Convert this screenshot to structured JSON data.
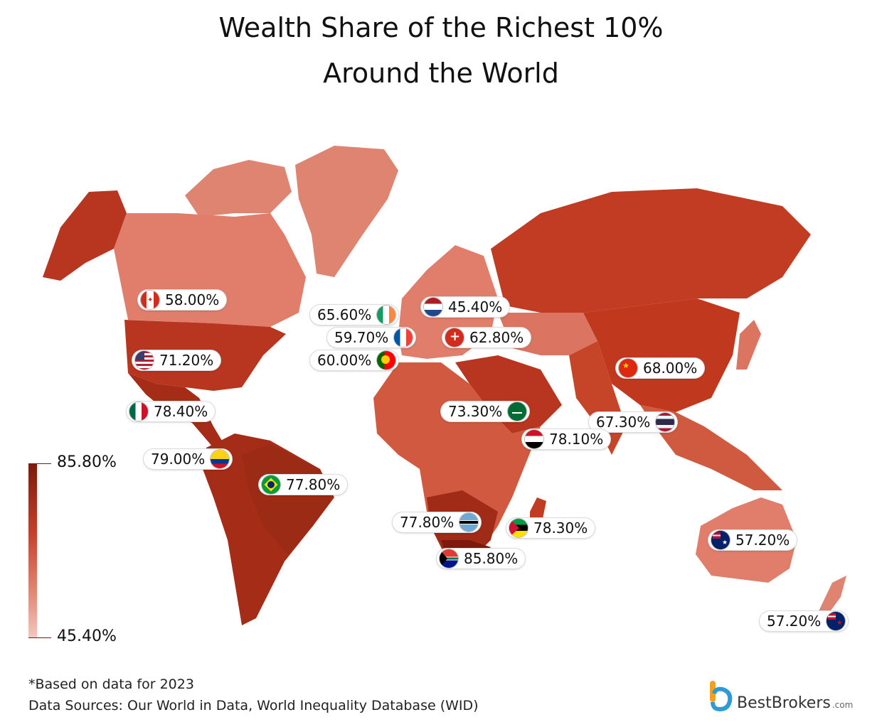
{
  "title_line1": "Wealth Share of the Richest 10%",
  "title_line2": "Around the World",
  "legend": {
    "max": "85.80%",
    "min": "45.40%",
    "color_max": "#7e1a0d",
    "color_min": "#f2c8bf"
  },
  "countries": [
    {
      "country": "Canada",
      "value": "58.00%",
      "flag_icon": "canada-flag-icon"
    },
    {
      "country": "Ireland",
      "value": "65.60%",
      "flag_icon": "ireland-flag-icon"
    },
    {
      "country": "Netherlands",
      "value": "45.40%",
      "flag_icon": "netherlands-flag-icon"
    },
    {
      "country": "France",
      "value": "59.70%",
      "flag_icon": "france-flag-icon"
    },
    {
      "country": "Switzerland",
      "value": "62.80%",
      "flag_icon": "switzerland-flag-icon"
    },
    {
      "country": "Portugal",
      "value": "60.00%",
      "flag_icon": "portugal-flag-icon"
    },
    {
      "country": "United States",
      "value": "71.20%",
      "flag_icon": "usa-flag-icon"
    },
    {
      "country": "China",
      "value": "68.00%",
      "flag_icon": "china-flag-icon"
    },
    {
      "country": "Mexico",
      "value": "78.40%",
      "flag_icon": "mexico-flag-icon"
    },
    {
      "country": "Saudi Arabia",
      "value": "73.30%",
      "flag_icon": "saudi-arabia-flag-icon"
    },
    {
      "country": "Thailand",
      "value": "67.30%",
      "flag_icon": "thailand-flag-icon"
    },
    {
      "country": "Yemen",
      "value": "78.10%",
      "flag_icon": "yemen-flag-icon"
    },
    {
      "country": "Colombia",
      "value": "79.00%",
      "flag_icon": "colombia-flag-icon"
    },
    {
      "country": "Brazil",
      "value": "77.80%",
      "flag_icon": "brazil-flag-icon"
    },
    {
      "country": "Botswana",
      "value": "77.80%",
      "flag_icon": "botswana-flag-icon"
    },
    {
      "country": "Mozambique",
      "value": "78.30%",
      "flag_icon": "mozambique-flag-icon"
    },
    {
      "country": "Australia",
      "value": "57.20%",
      "flag_icon": "australia-flag-icon"
    },
    {
      "country": "South Africa",
      "value": "85.80%",
      "flag_icon": "south-africa-flag-icon"
    },
    {
      "country": "New Zealand",
      "value": "57.20%",
      "flag_icon": "new-zealand-flag-icon"
    }
  ],
  "footnote": "*Based on data for 2023",
  "sources": "Data Sources: Our World in Data, World Inequality Database (WID)",
  "brand": {
    "name": "BestBrokers",
    "domain": ".com"
  }
}
